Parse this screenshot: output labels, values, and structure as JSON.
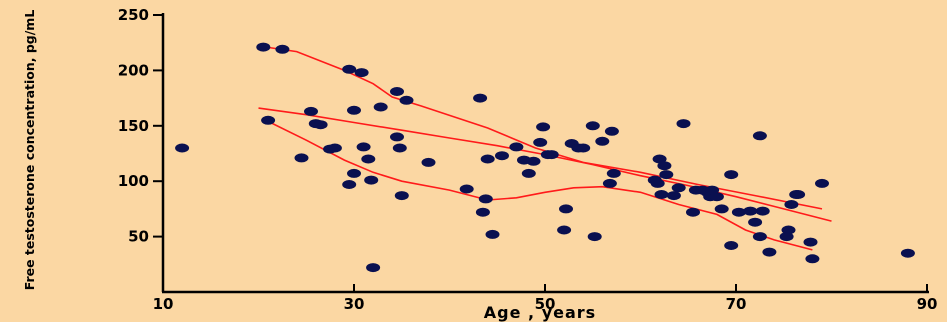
{
  "chart_data": {
    "type": "scatter",
    "xlabel": "Age , years",
    "ylabel": "Free testosterone concentration, pg/mL",
    "xlim": [
      10,
      90
    ],
    "ylim": [
      0,
      250
    ],
    "x_ticks": [
      10,
      30,
      50,
      70,
      90
    ],
    "y_ticks": [
      50,
      100,
      150,
      200,
      250
    ],
    "grid": false,
    "colors": {
      "background": "#FBD7A3",
      "points": "#0A1050",
      "lines": "#FF1A1A",
      "axes": "#000000"
    },
    "points": [
      [
        12,
        130
      ],
      [
        20.5,
        221
      ],
      [
        21,
        155
      ],
      [
        22.5,
        219
      ],
      [
        24.5,
        121
      ],
      [
        25.5,
        163
      ],
      [
        26,
        152
      ],
      [
        26.5,
        151
      ],
      [
        27.5,
        129
      ],
      [
        28,
        130
      ],
      [
        29.5,
        97
      ],
      [
        29.5,
        201
      ],
      [
        30,
        107
      ],
      [
        30,
        164
      ],
      [
        30.8,
        198
      ],
      [
        31,
        131
      ],
      [
        31.5,
        120
      ],
      [
        31.8,
        101
      ],
      [
        32,
        22
      ],
      [
        32.8,
        167
      ],
      [
        34.5,
        181
      ],
      [
        34.5,
        140
      ],
      [
        34.8,
        130
      ],
      [
        35,
        87
      ],
      [
        35.5,
        173
      ],
      [
        37.8,
        117
      ],
      [
        41.8,
        93
      ],
      [
        43.2,
        175
      ],
      [
        43.5,
        72
      ],
      [
        43.8,
        84
      ],
      [
        44,
        120
      ],
      [
        44.5,
        52
      ],
      [
        45.5,
        123
      ],
      [
        47,
        131
      ],
      [
        47.8,
        119
      ],
      [
        48.3,
        107
      ],
      [
        48.8,
        118
      ],
      [
        49.5,
        135
      ],
      [
        49.8,
        149
      ],
      [
        50.3,
        124
      ],
      [
        50.7,
        124
      ],
      [
        52,
        56
      ],
      [
        52.2,
        75
      ],
      [
        52.8,
        134
      ],
      [
        53.5,
        130
      ],
      [
        54,
        130
      ],
      [
        55,
        150
      ],
      [
        55.2,
        50
      ],
      [
        56,
        136
      ],
      [
        56.8,
        98
      ],
      [
        57,
        145
      ],
      [
        57.2,
        107
      ],
      [
        61.5,
        101
      ],
      [
        61.8,
        98
      ],
      [
        62,
        120
      ],
      [
        62.2,
        88
      ],
      [
        62.5,
        114
      ],
      [
        62.7,
        106
      ],
      [
        63.5,
        87
      ],
      [
        64,
        94
      ],
      [
        64.5,
        152
      ],
      [
        65.5,
        72
      ],
      [
        65.8,
        92
      ],
      [
        66.5,
        92
      ],
      [
        67,
        90
      ],
      [
        67.3,
        86
      ],
      [
        67.5,
        92
      ],
      [
        68,
        86
      ],
      [
        68.5,
        75
      ],
      [
        69.5,
        42
      ],
      [
        69.5,
        106
      ],
      [
        70.3,
        72
      ],
      [
        71.5,
        73
      ],
      [
        72,
        63
      ],
      [
        72.5,
        141
      ],
      [
        72.5,
        50
      ],
      [
        72.8,
        73
      ],
      [
        73.5,
        36
      ],
      [
        75.3,
        50
      ],
      [
        75.5,
        56
      ],
      [
        75.8,
        79
      ],
      [
        76.3,
        88
      ],
      [
        76.5,
        88
      ],
      [
        77.8,
        45
      ],
      [
        78,
        30
      ],
      [
        79,
        98
      ],
      [
        88,
        35
      ]
    ],
    "series": [
      {
        "values": [
          [
            20,
            222
          ],
          [
            24,
            217
          ],
          [
            29,
            200
          ],
          [
            32,
            188
          ],
          [
            34,
            176
          ],
          [
            37,
            168
          ],
          [
            44,
            148
          ],
          [
            49,
            130
          ],
          [
            54,
            117
          ],
          [
            60,
            108
          ],
          [
            66,
            97
          ],
          [
            72,
            87
          ],
          [
            79,
            75
          ]
        ]
      },
      {
        "values": [
          [
            20,
            166
          ],
          [
            25,
            160
          ],
          [
            30,
            153
          ],
          [
            35,
            146
          ],
          [
            40,
            139
          ],
          [
            45,
            132
          ],
          [
            50,
            124
          ],
          [
            55,
            115
          ],
          [
            60,
            105
          ],
          [
            65,
            96
          ],
          [
            70,
            86
          ],
          [
            75,
            75
          ],
          [
            80,
            64
          ]
        ]
      },
      {
        "values": [
          [
            21,
            154
          ],
          [
            25,
            137
          ],
          [
            29,
            119
          ],
          [
            32,
            108
          ],
          [
            35,
            100
          ],
          [
            40,
            92
          ],
          [
            44,
            83
          ],
          [
            47,
            85
          ],
          [
            50,
            90
          ],
          [
            53,
            94
          ],
          [
            56,
            95
          ],
          [
            60,
            90
          ],
          [
            64,
            79
          ],
          [
            68,
            70
          ],
          [
            71,
            56
          ],
          [
            74,
            47
          ],
          [
            78,
            38
          ]
        ]
      }
    ]
  }
}
